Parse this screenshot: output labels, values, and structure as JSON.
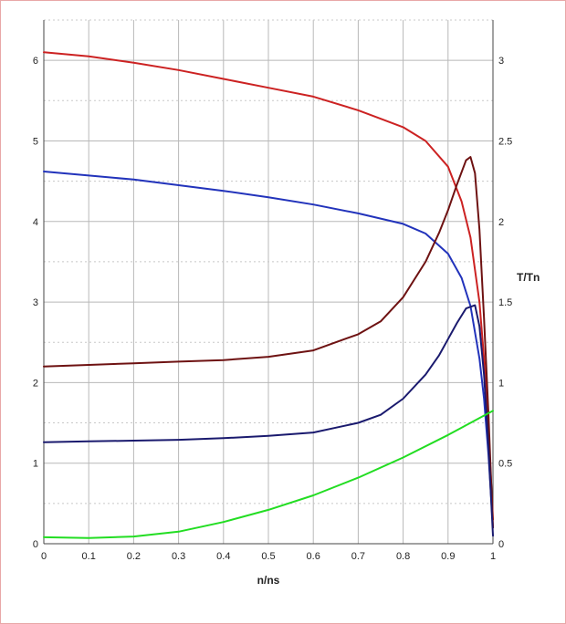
{
  "chart_data": {
    "type": "line",
    "title": "",
    "xlabel": "n/ns",
    "ylabel_left": "",
    "ylabel_right": "T/Tn",
    "xlim": [
      0,
      1
    ],
    "ylim_left": [
      0,
      6.5
    ],
    "ylim_right": [
      0,
      3.25
    ],
    "grid": true,
    "x_ticks": [
      "0",
      "0.1",
      "0.2",
      "0.3",
      "0.4",
      "0.5",
      "0.6",
      "0.7",
      "0.8",
      "0.9",
      "1"
    ],
    "y_left_ticks": [
      "0",
      "1",
      "2",
      "3",
      "4",
      "5",
      "6"
    ],
    "y_right_ticks": [
      "0",
      "0.5",
      "1",
      "1.5",
      "2",
      "2.5",
      "3"
    ],
    "series": [
      {
        "axis": "left",
        "color": "#cc2222",
        "x": [
          0,
          0.1,
          0.2,
          0.3,
          0.4,
          0.5,
          0.6,
          0.7,
          0.8,
          0.85,
          0.9,
          0.93,
          0.95,
          0.97,
          0.98,
          0.99,
          1.0
        ],
        "y": [
          6.1,
          6.05,
          5.97,
          5.88,
          5.77,
          5.66,
          5.55,
          5.38,
          5.17,
          5.0,
          4.68,
          4.25,
          3.8,
          3.0,
          2.3,
          1.4,
          0.3
        ]
      },
      {
        "axis": "left",
        "color": "#2233bb",
        "x": [
          0,
          0.1,
          0.2,
          0.3,
          0.4,
          0.5,
          0.6,
          0.7,
          0.8,
          0.85,
          0.9,
          0.93,
          0.95,
          0.97,
          0.98,
          0.99,
          1.0
        ],
        "y": [
          4.62,
          4.57,
          4.52,
          4.45,
          4.38,
          4.3,
          4.21,
          4.1,
          3.97,
          3.85,
          3.6,
          3.3,
          2.95,
          2.3,
          1.8,
          1.1,
          0.2
        ]
      },
      {
        "axis": "right",
        "color": "#6e1212",
        "x": [
          0,
          0.1,
          0.2,
          0.3,
          0.4,
          0.5,
          0.6,
          0.65,
          0.7,
          0.75,
          0.8,
          0.85,
          0.88,
          0.9,
          0.92,
          0.94,
          0.95,
          0.96,
          0.97,
          0.98,
          0.99,
          1.0
        ],
        "y": [
          1.1,
          1.11,
          1.12,
          1.13,
          1.14,
          1.16,
          1.2,
          1.25,
          1.3,
          1.38,
          1.53,
          1.75,
          1.93,
          2.07,
          2.23,
          2.38,
          2.4,
          2.3,
          1.95,
          1.4,
          0.8,
          0.1
        ]
      },
      {
        "axis": "right",
        "color": "#1a1a6e",
        "x": [
          0,
          0.1,
          0.2,
          0.3,
          0.4,
          0.5,
          0.6,
          0.65,
          0.7,
          0.75,
          0.8,
          0.85,
          0.88,
          0.9,
          0.92,
          0.94,
          0.96,
          0.97,
          0.98,
          0.99,
          1.0
        ],
        "y": [
          0.63,
          0.635,
          0.64,
          0.645,
          0.655,
          0.67,
          0.69,
          0.72,
          0.75,
          0.8,
          0.9,
          1.05,
          1.17,
          1.27,
          1.37,
          1.46,
          1.48,
          1.35,
          1.05,
          0.6,
          0.05
        ]
      },
      {
        "axis": "left",
        "color": "#22dd22",
        "x": [
          0,
          0.1,
          0.2,
          0.3,
          0.4,
          0.5,
          0.6,
          0.7,
          0.8,
          0.9,
          1.0
        ],
        "y": [
          0.08,
          0.07,
          0.09,
          0.15,
          0.27,
          0.42,
          0.6,
          0.82,
          1.07,
          1.35,
          1.65
        ]
      }
    ]
  }
}
